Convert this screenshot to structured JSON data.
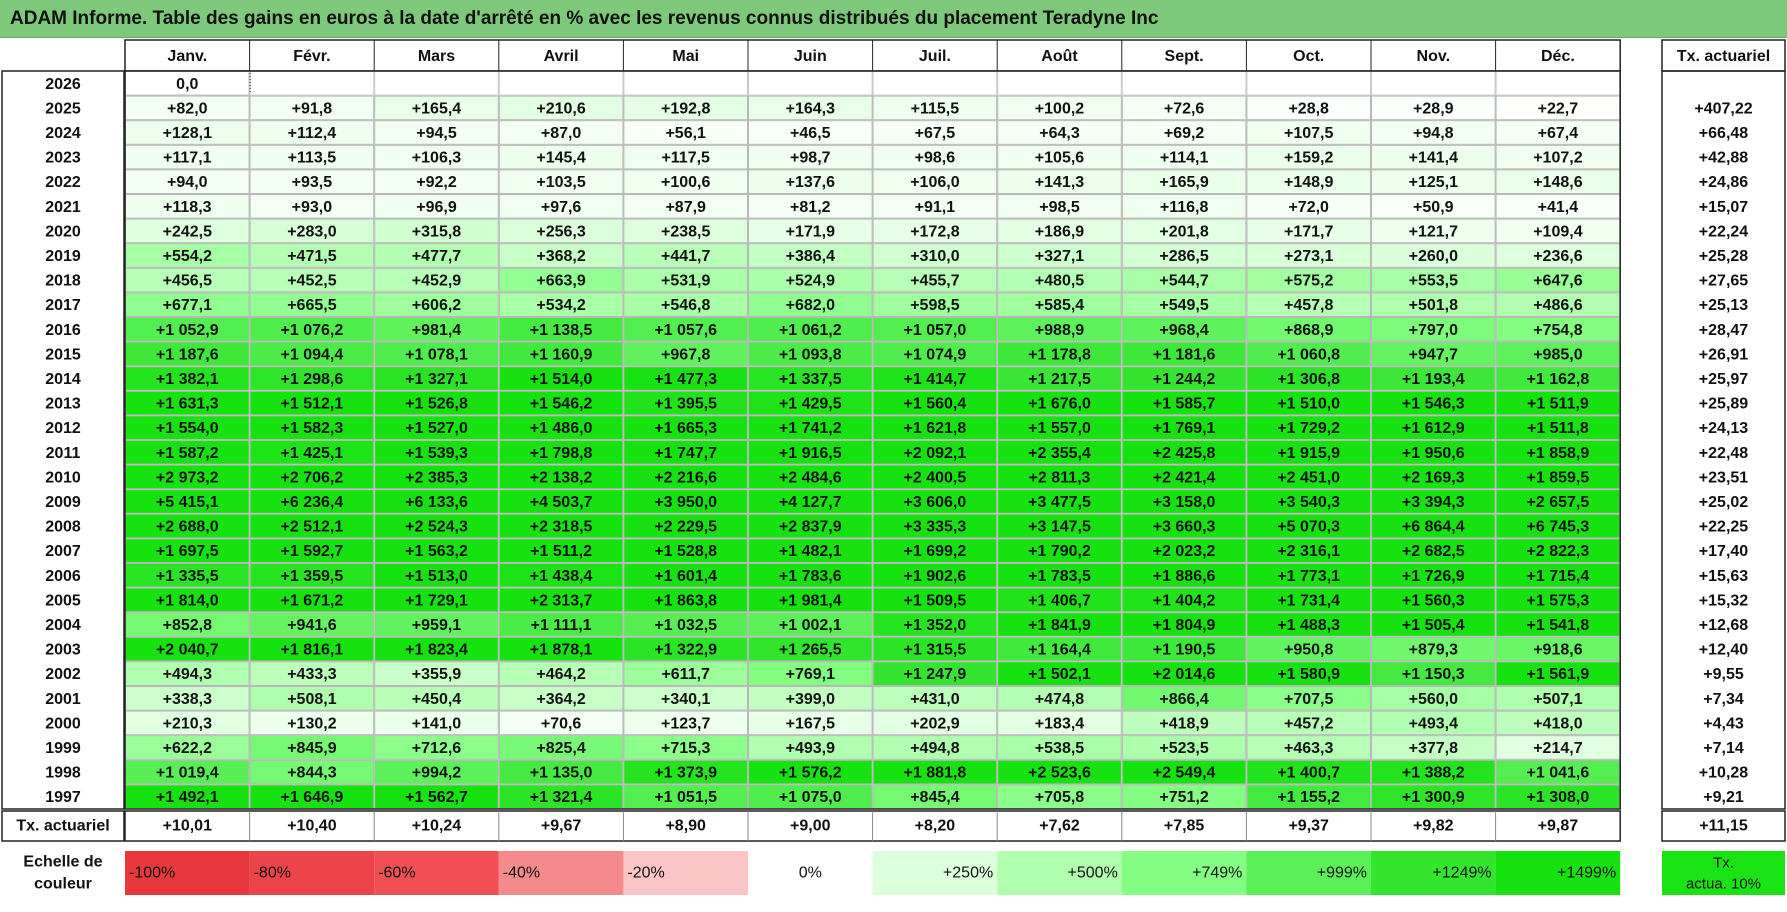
{
  "title": "ADAM Informe. Table des gains en euros à la date d'arrêté en % avec les revenus connus distribués du placement Teradyne Inc",
  "chart_data": {
    "type": "heatmap",
    "title": "ADAM Informe. Table des gains en euros à la date d'arrêté en % avec les revenus connus distribués du placement Teradyne Inc",
    "columns": [
      "Janv.",
      "Févr.",
      "Mars",
      "Avril",
      "Mai",
      "Juin",
      "Juil.",
      "Août",
      "Sept.",
      "Oct.",
      "Nov.",
      "Déc."
    ],
    "annual_header": "Tx. actuariel",
    "rows": [
      {
        "year": "2026",
        "values": [
          "0,0",
          "",
          "",
          "",
          "",
          "",
          "",
          "",
          "",
          "",
          "",
          ""
        ],
        "annual": ""
      },
      {
        "year": "2025",
        "values": [
          "+82,0",
          "+91,8",
          "+165,4",
          "+210,6",
          "+192,8",
          "+164,3",
          "+115,5",
          "+100,2",
          "+72,6",
          "+28,8",
          "+28,9",
          "+22,7"
        ],
        "annual": "+407,22"
      },
      {
        "year": "2024",
        "values": [
          "+128,1",
          "+112,4",
          "+94,5",
          "+87,0",
          "+56,1",
          "+46,5",
          "+67,5",
          "+64,3",
          "+69,2",
          "+107,5",
          "+94,8",
          "+67,4"
        ],
        "annual": "+66,48"
      },
      {
        "year": "2023",
        "values": [
          "+117,1",
          "+113,5",
          "+106,3",
          "+145,4",
          "+117,5",
          "+98,7",
          "+98,6",
          "+105,6",
          "+114,1",
          "+159,2",
          "+141,4",
          "+107,2"
        ],
        "annual": "+42,88"
      },
      {
        "year": "2022",
        "values": [
          "+94,0",
          "+93,5",
          "+92,2",
          "+103,5",
          "+100,6",
          "+137,6",
          "+106,0",
          "+141,3",
          "+165,9",
          "+148,9",
          "+125,1",
          "+148,6"
        ],
        "annual": "+24,86"
      },
      {
        "year": "2021",
        "values": [
          "+118,3",
          "+93,0",
          "+96,9",
          "+97,6",
          "+87,9",
          "+81,2",
          "+91,1",
          "+98,5",
          "+116,8",
          "+72,0",
          "+50,9",
          "+41,4"
        ],
        "annual": "+15,07"
      },
      {
        "year": "2020",
        "values": [
          "+242,5",
          "+283,0",
          "+315,8",
          "+256,3",
          "+238,5",
          "+171,9",
          "+172,8",
          "+186,9",
          "+201,8",
          "+171,7",
          "+121,7",
          "+109,4"
        ],
        "annual": "+22,24"
      },
      {
        "year": "2019",
        "values": [
          "+554,2",
          "+471,5",
          "+477,7",
          "+368,2",
          "+441,7",
          "+386,4",
          "+310,0",
          "+327,1",
          "+286,5",
          "+273,1",
          "+260,0",
          "+236,6"
        ],
        "annual": "+25,28"
      },
      {
        "year": "2018",
        "values": [
          "+456,5",
          "+452,5",
          "+452,9",
          "+663,9",
          "+531,9",
          "+524,9",
          "+455,7",
          "+480,5",
          "+544,7",
          "+575,2",
          "+553,5",
          "+647,6"
        ],
        "annual": "+27,65"
      },
      {
        "year": "2017",
        "values": [
          "+677,1",
          "+665,5",
          "+606,2",
          "+534,2",
          "+546,8",
          "+682,0",
          "+598,5",
          "+585,4",
          "+549,5",
          "+457,8",
          "+501,8",
          "+486,6"
        ],
        "annual": "+25,13"
      },
      {
        "year": "2016",
        "values": [
          "+1 052,9",
          "+1 076,2",
          "+981,4",
          "+1 138,5",
          "+1 057,6",
          "+1 061,2",
          "+1 057,0",
          "+988,9",
          "+968,4",
          "+868,9",
          "+797,0",
          "+754,8"
        ],
        "annual": "+28,47"
      },
      {
        "year": "2015",
        "values": [
          "+1 187,6",
          "+1 094,4",
          "+1 078,1",
          "+1 160,9",
          "+967,8",
          "+1 093,8",
          "+1 074,9",
          "+1 178,8",
          "+1 181,6",
          "+1 060,8",
          "+947,7",
          "+985,0"
        ],
        "annual": "+26,91"
      },
      {
        "year": "2014",
        "values": [
          "+1 382,1",
          "+1 298,6",
          "+1 327,1",
          "+1 514,0",
          "+1 477,3",
          "+1 337,5",
          "+1 414,7",
          "+1 217,5",
          "+1 244,2",
          "+1 306,8",
          "+1 193,4",
          "+1 162,8"
        ],
        "annual": "+25,97"
      },
      {
        "year": "2013",
        "values": [
          "+1 631,3",
          "+1 512,1",
          "+1 526,8",
          "+1 546,2",
          "+1 395,5",
          "+1 429,5",
          "+1 560,4",
          "+1 676,0",
          "+1 585,7",
          "+1 510,0",
          "+1 546,3",
          "+1 511,9"
        ],
        "annual": "+25,89"
      },
      {
        "year": "2012",
        "values": [
          "+1 554,0",
          "+1 582,3",
          "+1 527,0",
          "+1 486,0",
          "+1 665,3",
          "+1 741,2",
          "+1 621,8",
          "+1 557,0",
          "+1 769,1",
          "+1 729,2",
          "+1 612,9",
          "+1 511,8"
        ],
        "annual": "+24,13"
      },
      {
        "year": "2011",
        "values": [
          "+1 587,2",
          "+1 425,1",
          "+1 539,3",
          "+1 798,8",
          "+1 747,7",
          "+1 916,5",
          "+2 092,1",
          "+2 355,4",
          "+2 425,8",
          "+1 915,9",
          "+1 950,6",
          "+1 858,9"
        ],
        "annual": "+22,48"
      },
      {
        "year": "2010",
        "values": [
          "+2 973,2",
          "+2 706,2",
          "+2 385,3",
          "+2 138,2",
          "+2 216,6",
          "+2 484,6",
          "+2 400,5",
          "+2 811,3",
          "+2 421,4",
          "+2 451,0",
          "+2 169,3",
          "+1 859,5"
        ],
        "annual": "+23,51"
      },
      {
        "year": "2009",
        "values": [
          "+5 415,1",
          "+6 236,4",
          "+6 133,6",
          "+4 503,7",
          "+3 950,0",
          "+4 127,7",
          "+3 606,0",
          "+3 477,5",
          "+3 158,0",
          "+3 540,3",
          "+3 394,3",
          "+2 657,5"
        ],
        "annual": "+25,02"
      },
      {
        "year": "2008",
        "values": [
          "+2 688,0",
          "+2 512,1",
          "+2 524,3",
          "+2 318,5",
          "+2 229,5",
          "+2 837,9",
          "+3 335,3",
          "+3 147,5",
          "+3 660,3",
          "+5 070,3",
          "+6 864,4",
          "+6 745,3"
        ],
        "annual": "+22,25"
      },
      {
        "year": "2007",
        "values": [
          "+1 697,5",
          "+1 592,7",
          "+1 563,2",
          "+1 511,2",
          "+1 528,8",
          "+1 482,1",
          "+1 699,2",
          "+1 790,2",
          "+2 023,2",
          "+2 316,1",
          "+2 682,5",
          "+2 822,3"
        ],
        "annual": "+17,40"
      },
      {
        "year": "2006",
        "values": [
          "+1 335,5",
          "+1 359,5",
          "+1 513,0",
          "+1 438,4",
          "+1 601,4",
          "+1 783,6",
          "+1 902,6",
          "+1 783,5",
          "+1 886,6",
          "+1 773,1",
          "+1 726,9",
          "+1 715,4"
        ],
        "annual": "+15,63"
      },
      {
        "year": "2005",
        "values": [
          "+1 814,0",
          "+1 671,2",
          "+1 729,1",
          "+2 313,7",
          "+1 863,8",
          "+1 981,4",
          "+1 509,5",
          "+1 406,7",
          "+1 404,2",
          "+1 731,4",
          "+1 560,3",
          "+1 575,3"
        ],
        "annual": "+15,32"
      },
      {
        "year": "2004",
        "values": [
          "+852,8",
          "+941,6",
          "+959,1",
          "+1 111,1",
          "+1 032,5",
          "+1 002,1",
          "+1 352,0",
          "+1 841,9",
          "+1 804,9",
          "+1 488,3",
          "+1 505,4",
          "+1 541,8"
        ],
        "annual": "+12,68"
      },
      {
        "year": "2003",
        "values": [
          "+2 040,7",
          "+1 816,1",
          "+1 823,4",
          "+1 878,1",
          "+1 322,9",
          "+1 265,5",
          "+1 315,5",
          "+1 164,4",
          "+1 190,5",
          "+950,8",
          "+879,3",
          "+918,6"
        ],
        "annual": "+12,40"
      },
      {
        "year": "2002",
        "values": [
          "+494,3",
          "+433,3",
          "+355,9",
          "+464,2",
          "+611,7",
          "+769,1",
          "+1 247,9",
          "+1 502,1",
          "+2 014,6",
          "+1 580,9",
          "+1 150,3",
          "+1 561,9"
        ],
        "annual": "+9,55"
      },
      {
        "year": "2001",
        "values": [
          "+338,3",
          "+508,1",
          "+450,4",
          "+364,2",
          "+340,1",
          "+399,0",
          "+431,0",
          "+474,8",
          "+866,4",
          "+707,5",
          "+560,0",
          "+507,1"
        ],
        "annual": "+7,34"
      },
      {
        "year": "2000",
        "values": [
          "+210,3",
          "+130,2",
          "+141,0",
          "+70,6",
          "+123,7",
          "+167,5",
          "+202,9",
          "+183,4",
          "+418,9",
          "+457,2",
          "+493,4",
          "+418,0"
        ],
        "annual": "+4,43"
      },
      {
        "year": "1999",
        "values": [
          "+622,2",
          "+845,9",
          "+712,6",
          "+825,4",
          "+715,3",
          "+493,9",
          "+494,8",
          "+538,5",
          "+523,5",
          "+463,3",
          "+377,8",
          "+214,7"
        ],
        "annual": "+7,14"
      },
      {
        "year": "1998",
        "values": [
          "+1 019,4",
          "+844,3",
          "+994,2",
          "+1 135,0",
          "+1 373,9",
          "+1 576,2",
          "+1 881,8",
          "+2 523,6",
          "+2 549,4",
          "+1 400,7",
          "+1 388,2",
          "+1 041,6"
        ],
        "annual": "+10,28"
      },
      {
        "year": "1997",
        "values": [
          "+1 492,1",
          "+1 646,9",
          "+1 562,7",
          "+1 321,4",
          "+1 051,5",
          "+1 075,0",
          "+845,4",
          "+705,8",
          "+751,2",
          "+1 155,2",
          "+1 300,9",
          "+1 308,0"
        ],
        "annual": "+9,21"
      }
    ],
    "footer_row": {
      "label": "Tx. actuariel",
      "values": [
        "+10,01",
        "+10,40",
        "+10,24",
        "+9,67",
        "+8,90",
        "+9,00",
        "+8,20",
        "+7,62",
        "+7,85",
        "+9,37",
        "+9,82",
        "+9,87"
      ],
      "annual": "+11,15"
    },
    "color_scale": {
      "label_line1": "Echelle de",
      "label_line2": "couleur",
      "stops": [
        {
          "label": "-100%",
          "color": "#e8383d"
        },
        {
          "label": "-80%",
          "color": "#ec4448"
        },
        {
          "label": "-60%",
          "color": "#f04f53"
        },
        {
          "label": "-40%",
          "color": "#f58a8c"
        },
        {
          "label": "-20%",
          "color": "#fbc5c6"
        },
        {
          "label": "0%",
          "color": "#ffffff"
        },
        {
          "label": "+250%",
          "color": "#dcffdc"
        },
        {
          "label": "+500%",
          "color": "#b0ffaf"
        },
        {
          "label": "+749%",
          "color": "#85ff83"
        },
        {
          "label": "+999%",
          "color": "#5bf058"
        },
        {
          "label": "+1249%",
          "color": "#33e52e"
        },
        {
          "label": "+1499%",
          "color": "#15e20e"
        }
      ],
      "reference_label_line1": "Tx.",
      "reference_label_line2": "actua. 10%",
      "reference_color": "#19e312"
    }
  }
}
